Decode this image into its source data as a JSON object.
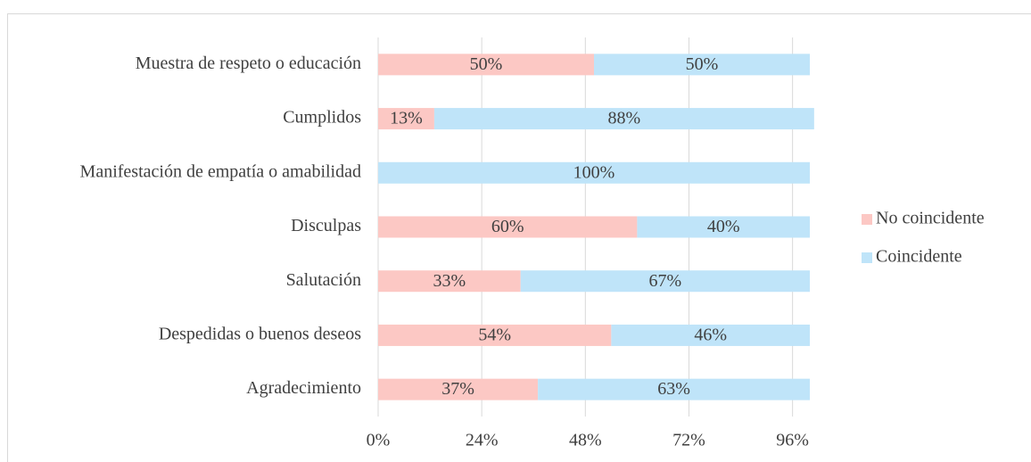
{
  "chart_data": {
    "type": "bar",
    "orientation": "horizontal",
    "stacked": true,
    "categories": [
      "Muestra de respeto o educación",
      "Cumplidos",
      "Manifestación de empatía o amabilidad",
      "Disculpas",
      "Salutación",
      "Despedidas o buenos deseos",
      "Agradecimiento"
    ],
    "series": [
      {
        "name": "No coincidente",
        "color": "#fcc8c4",
        "values": [
          50,
          13,
          0,
          60,
          33,
          54,
          37
        ],
        "value_labels": [
          "50%",
          "13%",
          null,
          "60%",
          "33%",
          "54%",
          "37%"
        ]
      },
      {
        "name": "Coincidente",
        "color": "#bfe4f9",
        "values": [
          50,
          88,
          100,
          40,
          67,
          46,
          63
        ],
        "value_labels": [
          "50%",
          "88%",
          "100%",
          "40%",
          "67%",
          "46%",
          "63%"
        ]
      }
    ],
    "xlim": [
      0,
      100
    ],
    "xticks": [
      {
        "value": 0,
        "label": "0%"
      },
      {
        "value": 24,
        "label": "24%"
      },
      {
        "value": 48,
        "label": "48%"
      },
      {
        "value": 72,
        "label": "72%"
      },
      {
        "value": 96,
        "label": "96%"
      }
    ],
    "grid": true,
    "legend": "right"
  }
}
